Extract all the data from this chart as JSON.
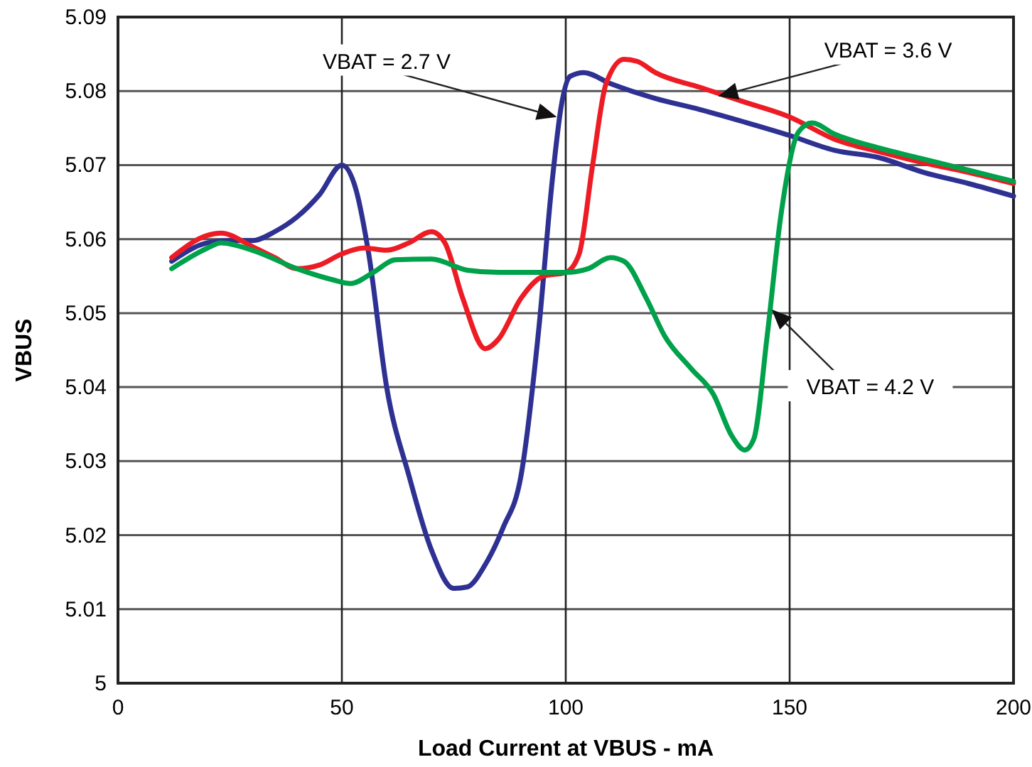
{
  "chart_data": {
    "type": "line",
    "xlabel": "Load Current at VBUS - mA",
    "ylabel": "VBUS",
    "xlim": [
      0,
      200
    ],
    "xticks": [
      0,
      50,
      100,
      150,
      200
    ],
    "ylim": [
      5,
      5.09
    ],
    "yticks": [
      5,
      5.01,
      5.02,
      5.03,
      5.04,
      5.05,
      5.06,
      5.07,
      5.08,
      5.09
    ],
    "grid": true,
    "line_style": "solid",
    "series": [
      {
        "name": "VBAT = 2.7 V",
        "color": "#2e3192",
        "x": [
          12,
          20,
          25,
          30,
          35,
          40,
          45,
          50,
          53,
          56,
          60,
          65,
          70,
          75,
          78,
          82,
          86,
          90,
          94,
          97,
          99,
          101,
          104,
          110,
          120,
          130,
          140,
          150,
          160,
          170,
          180,
          190,
          200
        ],
        "values": [
          5.057,
          5.0595,
          5.0598,
          5.0598,
          5.061,
          5.063,
          5.066,
          5.07,
          5.067,
          5.058,
          5.04,
          5.028,
          5.018,
          5.0128,
          5.013,
          5.016,
          5.021,
          5.028,
          5.048,
          5.068,
          5.078,
          5.082,
          5.0825,
          5.081,
          5.079,
          5.0775,
          5.0758,
          5.074,
          5.072,
          5.071,
          5.069,
          5.0675,
          5.0658
        ]
      },
      {
        "name": "VBAT = 3.6 V",
        "color": "#ed1c24",
        "x": [
          12,
          20,
          23,
          30,
          35,
          40,
          45,
          50,
          55,
          60,
          65,
          70,
          73,
          77,
          82,
          85,
          90,
          95,
          100,
          103,
          106,
          109,
          113,
          116,
          120,
          130,
          140,
          150,
          160,
          170,
          180,
          190,
          200
        ],
        "values": [
          5.0575,
          5.0605,
          5.0608,
          5.059,
          5.0575,
          5.056,
          5.0565,
          5.058,
          5.0588,
          5.0585,
          5.0595,
          5.061,
          5.0595,
          5.052,
          5.0452,
          5.0465,
          5.052,
          5.055,
          5.0555,
          5.058,
          5.07,
          5.081,
          5.0843,
          5.084,
          5.0825,
          5.0805,
          5.0785,
          5.0765,
          5.0735,
          5.0718,
          5.0703,
          5.069,
          5.0675
        ]
      },
      {
        "name": "VBAT = 4.2 V",
        "color": "#00a14b",
        "x": [
          12,
          20,
          23,
          30,
          40,
          48,
          52,
          57,
          62,
          70,
          78,
          85,
          95,
          100,
          105,
          110,
          113,
          118,
          122,
          128,
          133,
          137,
          140,
          142,
          145,
          148,
          152,
          155,
          160,
          170,
          180,
          190,
          200
        ],
        "values": [
          5.056,
          5.0588,
          5.0595,
          5.0585,
          5.056,
          5.0545,
          5.054,
          5.0555,
          5.0572,
          5.0573,
          5.0558,
          5.0555,
          5.0555,
          5.0555,
          5.056,
          5.0575,
          5.057,
          5.052,
          5.047,
          5.0425,
          5.039,
          5.0335,
          5.0315,
          5.033,
          5.047,
          5.063,
          5.0745,
          5.0757,
          5.0742,
          5.0723,
          5.0708,
          5.0693,
          5.0678
        ]
      }
    ]
  }
}
